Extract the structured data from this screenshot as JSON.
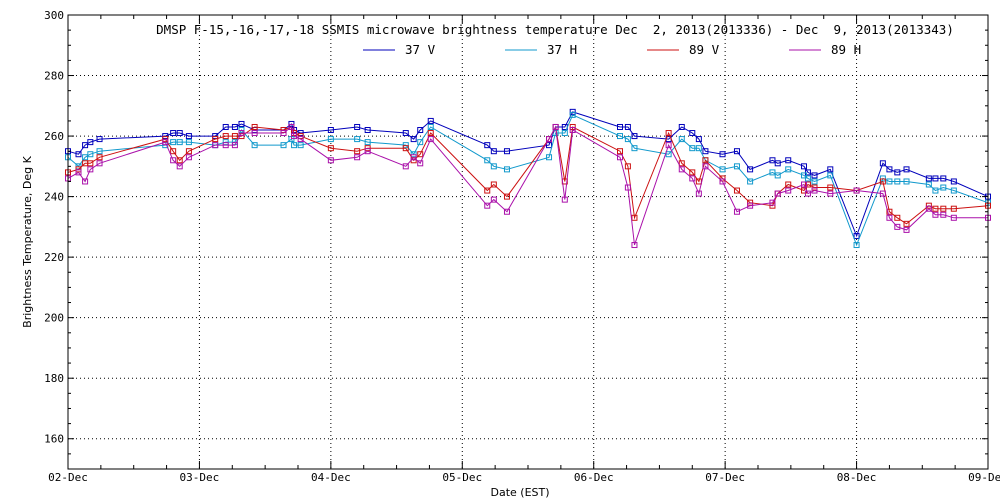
{
  "chart_data": {
    "type": "line",
    "title": "DMSP F-15,-16,-17,-18 SSMIS microwave brightness temperature Dec  2, 2013(2013336) - Dec  9, 2013(2013343)",
    "xlabel": "Date (EST)",
    "ylabel": "Brightness Temperature, Deg K",
    "xlim": [
      0,
      7
    ],
    "ylim": [
      150,
      300
    ],
    "yticks": [
      160,
      180,
      200,
      220,
      240,
      260,
      280,
      300
    ],
    "xtick_labels": [
      "02-Dec",
      "03-Dec",
      "04-Dec",
      "05-Dec",
      "06-Dec",
      "07-Dec",
      "08-Dec",
      "09-Dec"
    ],
    "grid": true,
    "legend_position": "top",
    "series": [
      {
        "name": "37 V",
        "color": "#0000bb",
        "x": [
          0.0,
          0.08,
          0.13,
          0.17,
          0.24,
          0.74,
          0.8,
          0.85,
          0.92,
          1.12,
          1.2,
          1.27,
          1.32,
          1.42,
          1.64,
          1.7,
          1.72,
          1.77,
          2.0,
          2.2,
          2.28,
          2.57,
          2.63,
          2.68,
          2.76,
          3.19,
          3.24,
          3.34,
          3.66,
          3.71,
          3.78,
          3.84,
          4.2,
          4.26,
          4.31,
          4.57,
          4.67,
          4.75,
          4.8,
          4.85,
          4.98,
          5.09,
          5.19,
          5.36,
          5.4,
          5.48,
          5.6,
          5.63,
          5.68,
          5.8,
          6.0,
          6.2,
          6.25,
          6.31,
          6.38,
          6.55,
          6.6,
          6.66,
          6.74,
          7.0
        ],
        "values": [
          255,
          254,
          257,
          258,
          259,
          260,
          261,
          261,
          260,
          260,
          263,
          263,
          264,
          262,
          262,
          264,
          262,
          261,
          262,
          263,
          262,
          261,
          259,
          262,
          265,
          257,
          255,
          255,
          257,
          263,
          263,
          268,
          263,
          263,
          260,
          259,
          263,
          261,
          259,
          255,
          254,
          255,
          249,
          252,
          251,
          252,
          250,
          248,
          247,
          249,
          227,
          251,
          249,
          248,
          249,
          246,
          246,
          246,
          245,
          240
        ]
      },
      {
        "name": "37 H",
        "color": "#1199cc",
        "x": [
          0.0,
          0.08,
          0.13,
          0.17,
          0.24,
          0.74,
          0.8,
          0.85,
          0.92,
          1.12,
          1.2,
          1.27,
          1.32,
          1.42,
          1.64,
          1.7,
          1.72,
          1.77,
          2.0,
          2.2,
          2.28,
          2.57,
          2.63,
          2.68,
          2.76,
          3.19,
          3.24,
          3.34,
          3.66,
          3.71,
          3.78,
          3.84,
          4.2,
          4.26,
          4.31,
          4.57,
          4.67,
          4.75,
          4.8,
          4.85,
          4.98,
          5.09,
          5.19,
          5.36,
          5.4,
          5.48,
          5.6,
          5.63,
          5.68,
          5.8,
          6.0,
          6.2,
          6.25,
          6.31,
          6.38,
          6.55,
          6.6,
          6.66,
          6.74,
          7.0
        ],
        "values": [
          253,
          250,
          253,
          254,
          255,
          257,
          258,
          258,
          258,
          257,
          258,
          258,
          262,
          257,
          257,
          259,
          257,
          257,
          259,
          259,
          258,
          257,
          254,
          258,
          263,
          252,
          250,
          249,
          253,
          261,
          261,
          267,
          260,
          259,
          256,
          254,
          259,
          256,
          256,
          252,
          249,
          250,
          245,
          248,
          247,
          249,
          247,
          246,
          245,
          247,
          224,
          246,
          245,
          245,
          245,
          244,
          242,
          243,
          242,
          238
        ]
      },
      {
        "name": "89 V",
        "color": "#cc1111",
        "x": [
          0.0,
          0.08,
          0.13,
          0.17,
          0.24,
          0.74,
          0.8,
          0.85,
          0.92,
          1.12,
          1.2,
          1.27,
          1.32,
          1.42,
          1.64,
          1.7,
          1.72,
          1.77,
          2.0,
          2.2,
          2.28,
          2.57,
          2.63,
          2.68,
          2.76,
          3.19,
          3.24,
          3.34,
          3.66,
          3.71,
          3.78,
          3.84,
          4.2,
          4.26,
          4.31,
          4.57,
          4.67,
          4.75,
          4.8,
          4.85,
          4.98,
          5.09,
          5.19,
          5.36,
          5.4,
          5.48,
          5.6,
          5.63,
          5.68,
          5.8,
          6.0,
          6.2,
          6.25,
          6.31,
          6.38,
          6.55,
          6.6,
          6.66,
          6.74,
          7.0
        ],
        "values": [
          248,
          249,
          251,
          251,
          253,
          259,
          255,
          252,
          255,
          259,
          260,
          260,
          260,
          263,
          262,
          263,
          261,
          260,
          256,
          255,
          256,
          256,
          252,
          254,
          261,
          242,
          244,
          240,
          259,
          263,
          245,
          263,
          255,
          250,
          233,
          261,
          251,
          248,
          245,
          252,
          246,
          242,
          238,
          237,
          241,
          244,
          242,
          244,
          243,
          243,
          242,
          245,
          235,
          233,
          231,
          237,
          236,
          236,
          236,
          237
        ]
      },
      {
        "name": "89 H",
        "color": "#aa11aa",
        "x": [
          0.0,
          0.08,
          0.13,
          0.17,
          0.24,
          0.74,
          0.8,
          0.85,
          0.92,
          1.12,
          1.2,
          1.27,
          1.32,
          1.42,
          1.64,
          1.7,
          1.72,
          1.77,
          2.0,
          2.2,
          2.28,
          2.57,
          2.63,
          2.68,
          2.76,
          3.19,
          3.24,
          3.34,
          3.66,
          3.71,
          3.78,
          3.84,
          4.2,
          4.26,
          4.31,
          4.57,
          4.67,
          4.75,
          4.8,
          4.85,
          4.98,
          5.09,
          5.19,
          5.36,
          5.4,
          5.48,
          5.6,
          5.63,
          5.68,
          5.8,
          6.0,
          6.2,
          6.25,
          6.31,
          6.38,
          6.55,
          6.6,
          6.66,
          6.74,
          7.0
        ],
        "values": [
          246,
          248,
          245,
          249,
          251,
          258,
          252,
          250,
          253,
          257,
          257,
          257,
          261,
          261,
          261,
          263,
          260,
          259,
          252,
          253,
          255,
          250,
          253,
          251,
          259,
          237,
          239,
          235,
          259,
          263,
          239,
          262,
          253,
          243,
          224,
          257,
          249,
          246,
          241,
          250,
          245,
          235,
          237,
          238,
          241,
          242,
          244,
          241,
          242,
          241,
          242,
          241,
          233,
          230,
          229,
          236,
          234,
          234,
          233,
          233
        ]
      }
    ]
  }
}
